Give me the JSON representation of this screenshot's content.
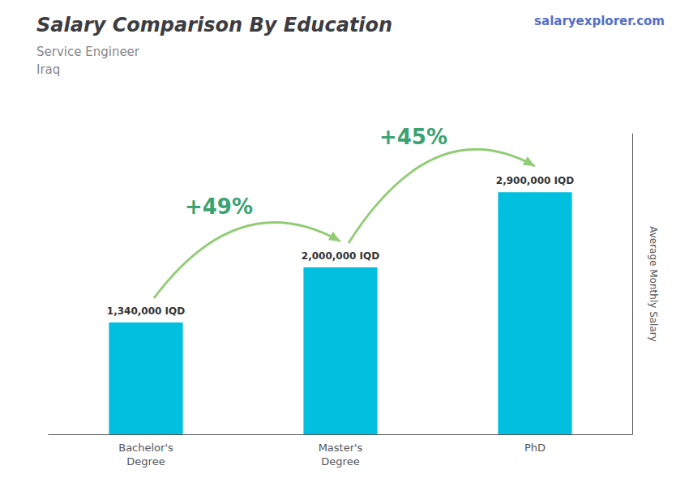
{
  "chart_data": {
    "type": "bar",
    "title": "Salary Comparison By Education",
    "subtitle": "Service Engineer\nIraq",
    "source": "salaryexplorer.com",
    "y_label": "Average Monthly Salary",
    "categories": [
      "Bachelor's\nDegree",
      "Master's\nDegree",
      "PhD"
    ],
    "values": [
      1340000,
      2000000,
      2900000
    ],
    "value_labels": [
      "1,340,000 IQD",
      "2,000,000 IQD",
      "2,900,000 IQD"
    ],
    "data_labels": true,
    "annotations": [
      "+49%",
      "+45%"
    ],
    "color": "#00bfdf",
    "ylim": [
      0,
      3600000
    ],
    "yticks": [],
    "tick_labels": "x",
    "grid": false
  }
}
